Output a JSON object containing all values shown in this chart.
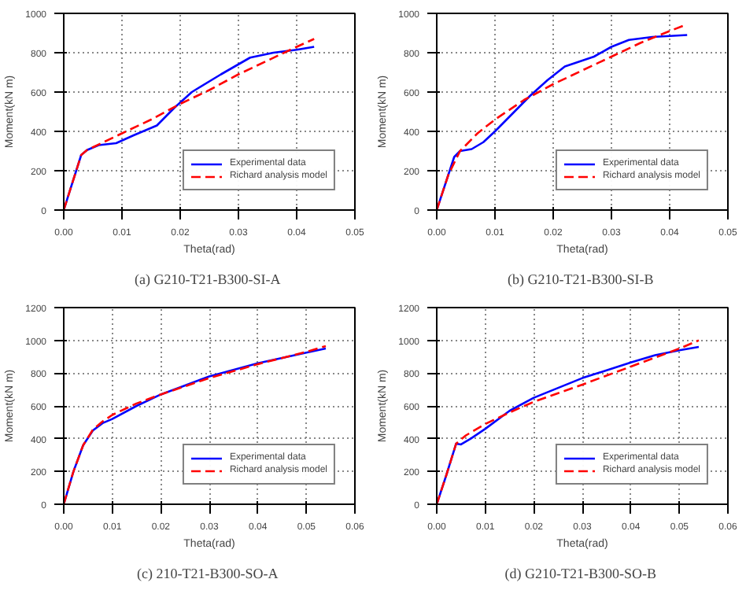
{
  "chart_data": [
    {
      "type": "line",
      "title": "(a)  G210-T21-B300-SI-A",
      "xlabel": "Theta(rad)",
      "ylabel": "Moment(kN m)",
      "xlim": [
        0,
        0.05
      ],
      "ylim": [
        0,
        1000
      ],
      "xticks": [
        {
          "value": 0,
          "label": "0.00"
        },
        0.01,
        0.02,
        0.03,
        0.04,
        {
          "value": 0.05,
          "label": "0.05"
        }
      ],
      "yticks": [
        0,
        200,
        400,
        600,
        800,
        1000
      ],
      "grid": true,
      "legend": "bottom right",
      "series": [
        {
          "name": "Experimental data",
          "color": "#0000ff",
          "line_style": "solid",
          "x": [
            0,
            0.003,
            0.004,
            0.006,
            0.009,
            0.012,
            0.016,
            0.019,
            0.022,
            0.027,
            0.032,
            0.036,
            0.04,
            0.043
          ],
          "values": [
            0,
            280,
            305,
            330,
            340,
            380,
            430,
            520,
            600,
            690,
            775,
            800,
            815,
            830
          ]
        },
        {
          "name": "Richard analysis model",
          "color": "#ff0000",
          "line_style": "dashed",
          "x": [
            0,
            0.003,
            0.004,
            0.01,
            0.015,
            0.02,
            0.025,
            0.03,
            0.035,
            0.04,
            0.043
          ],
          "values": [
            0,
            280,
            305,
            390,
            460,
            540,
            610,
            690,
            760,
            830,
            870
          ]
        }
      ]
    },
    {
      "type": "line",
      "title": "(b)  G210-T21-B300-SI-B",
      "xlabel": "Theta(rad)",
      "ylabel": "Moment(kN m)",
      "xlim": [
        0,
        0.05
      ],
      "ylim": [
        0,
        1000
      ],
      "xticks": [
        {
          "value": 0,
          "label": "0.00"
        },
        0.01,
        0.02,
        0.03,
        0.04,
        {
          "value": 0.05,
          "label": "0.05"
        }
      ],
      "yticks": [
        0,
        200,
        400,
        600,
        800,
        1000
      ],
      "grid": true,
      "legend": "bottom right",
      "series": [
        {
          "name": "Experimental data",
          "color": "#0000ff",
          "line_style": "solid",
          "x": [
            0,
            0.002,
            0.003,
            0.004,
            0.006,
            0.008,
            0.01,
            0.013,
            0.016,
            0.019,
            0.022,
            0.027,
            0.03,
            0.033,
            0.037,
            0.04,
            0.043
          ],
          "values": [
            0,
            180,
            270,
            300,
            310,
            345,
            400,
            490,
            580,
            660,
            730,
            780,
            830,
            865,
            880,
            885,
            890
          ]
        },
        {
          "name": "Richard analysis model",
          "color": "#ff0000",
          "line_style": "dashed",
          "x": [
            0,
            0.002,
            0.004,
            0.007,
            0.01,
            0.015,
            0.02,
            0.025,
            0.03,
            0.035,
            0.04,
            0.043
          ],
          "values": [
            0,
            180,
            300,
            390,
            460,
            560,
            640,
            710,
            780,
            850,
            910,
            945
          ]
        }
      ]
    },
    {
      "type": "line",
      "title": "(c)  210-T21-B300-SO-A",
      "xlabel": "Theta(rad)",
      "ylabel": "Moment(kN m)",
      "xlim": [
        0,
        0.06
      ],
      "ylim": [
        0,
        1200
      ],
      "xticks": [
        {
          "value": 0,
          "label": "0.00"
        },
        0.01,
        0.02,
        0.03,
        0.04,
        0.05,
        {
          "value": 0.06,
          "label": "0.06"
        }
      ],
      "yticks": [
        0,
        200,
        400,
        600,
        800,
        1000,
        1200
      ],
      "grid": true,
      "legend": "bottom right",
      "series": [
        {
          "name": "Experimental data",
          "color": "#0000ff",
          "line_style": "solid",
          "x": [
            0,
            0.002,
            0.004,
            0.006,
            0.008,
            0.01,
            0.015,
            0.02,
            0.025,
            0.03,
            0.04,
            0.05,
            0.054
          ],
          "values": [
            0,
            200,
            360,
            450,
            495,
            520,
            600,
            670,
            725,
            780,
            860,
            925,
            950
          ]
        },
        {
          "name": "Richard analysis model",
          "color": "#ff0000",
          "line_style": "dashed",
          "x": [
            0,
            0.002,
            0.004,
            0.006,
            0.008,
            0.01,
            0.015,
            0.02,
            0.025,
            0.03,
            0.04,
            0.05,
            0.054
          ],
          "values": [
            0,
            200,
            360,
            455,
            505,
            545,
            615,
            670,
            720,
            770,
            855,
            930,
            965
          ]
        }
      ]
    },
    {
      "type": "line",
      "title": "(d)  G210-T21-B300-SO-B",
      "xlabel": "Theta(rad)",
      "ylabel": "Moment(kN m)",
      "xlim": [
        0,
        0.06
      ],
      "ylim": [
        0,
        1200
      ],
      "xticks": [
        {
          "value": 0,
          "label": "0.00"
        },
        0.01,
        0.02,
        0.03,
        0.04,
        0.05,
        {
          "value": 0.06,
          "label": "0.06"
        }
      ],
      "yticks": [
        0,
        200,
        400,
        600,
        800,
        1000,
        1200
      ],
      "grid": true,
      "legend": "bottom right",
      "series": [
        {
          "name": "Experimental data",
          "color": "#0000ff",
          "line_style": "solid",
          "x": [
            0,
            0.002,
            0.004,
            0.005,
            0.007,
            0.01,
            0.015,
            0.02,
            0.03,
            0.04,
            0.045,
            0.05,
            0.054
          ],
          "values": [
            0,
            180,
            370,
            365,
            400,
            460,
            570,
            650,
            770,
            865,
            910,
            940,
            960
          ]
        },
        {
          "name": "Richard analysis model",
          "color": "#ff0000",
          "line_style": "dashed",
          "x": [
            0,
            0.002,
            0.004,
            0.006,
            0.01,
            0.015,
            0.02,
            0.03,
            0.04,
            0.05,
            0.054
          ],
          "values": [
            0,
            180,
            370,
            420,
            490,
            560,
            625,
            730,
            840,
            950,
            1000
          ]
        }
      ]
    }
  ]
}
